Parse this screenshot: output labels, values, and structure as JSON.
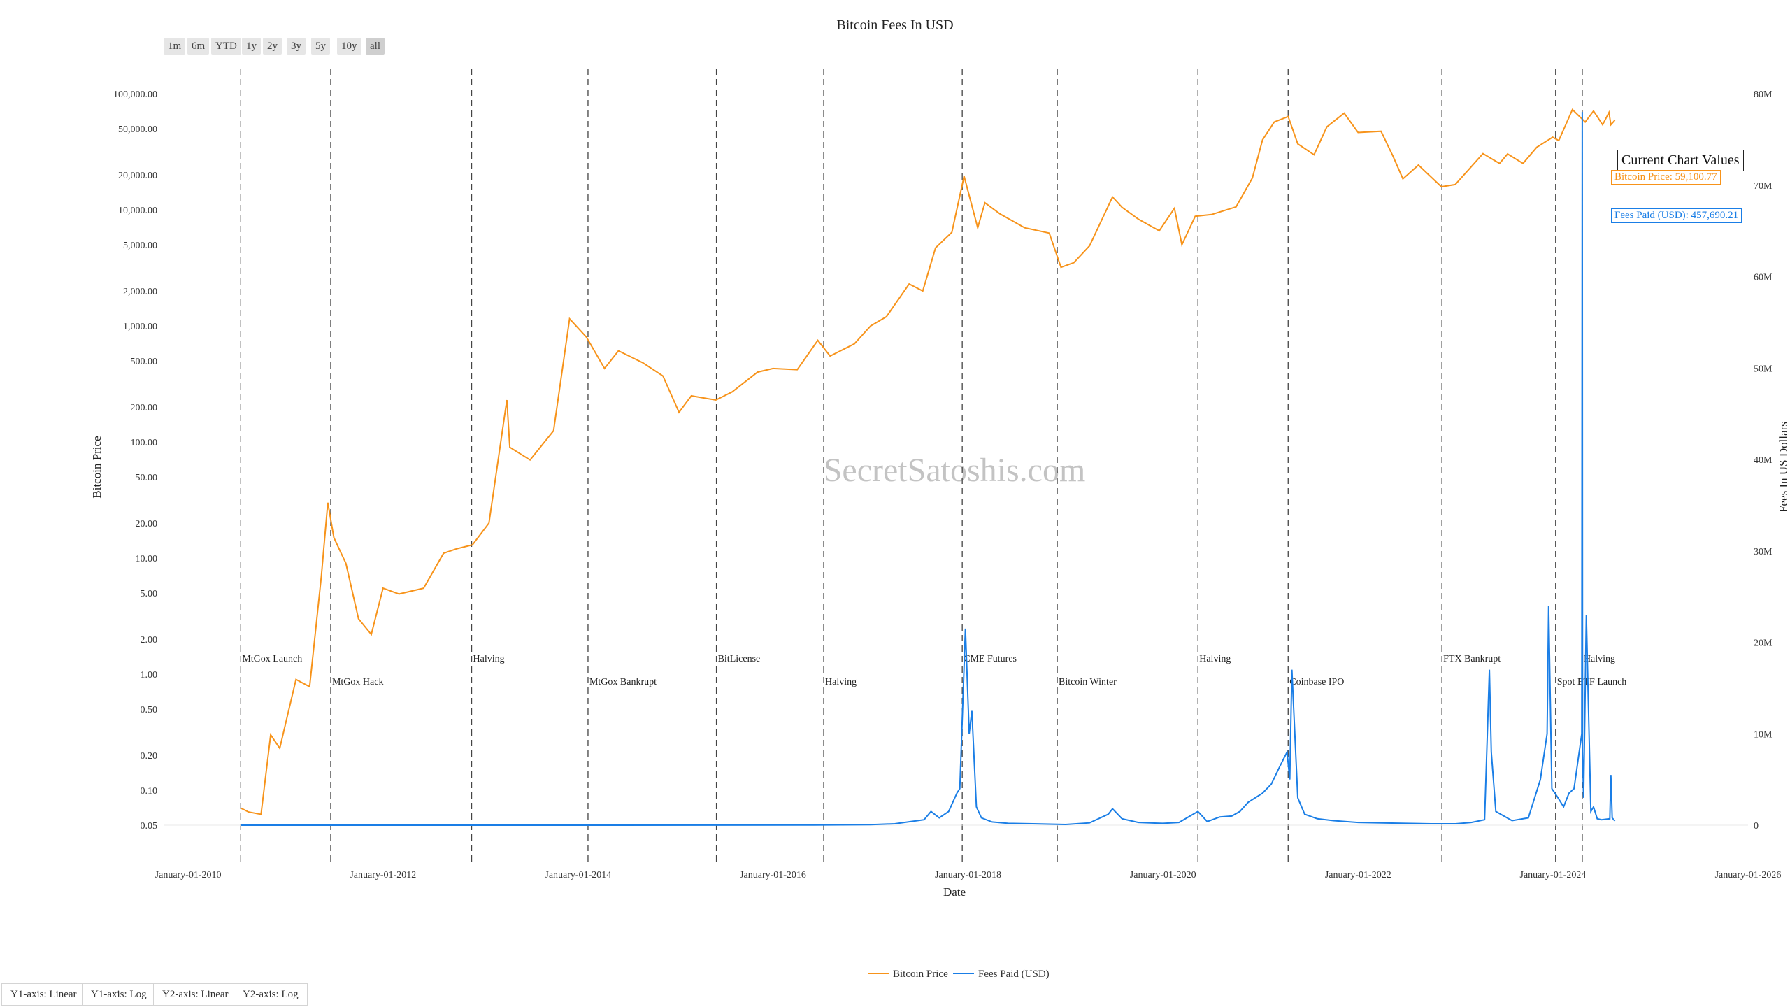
{
  "range_buttons": [
    "1m",
    "6m",
    "YTD",
    "1y",
    "2y",
    "3y",
    "5y",
    "10y",
    "all"
  ],
  "active_range": "all",
  "y_axis_buttons": [
    "Y1-axis: Linear",
    "Y1-axis: Log",
    "Y2-axis: Linear",
    "Y2-axis: Log"
  ],
  "watermark": "SecretSatoshis.com",
  "current_values": {
    "title": "Current Chart Values",
    "price_label": "Bitcoin Price: 59,100.77",
    "fees_label": "Fees Paid (USD): 457,690.21"
  },
  "colors": {
    "price": "#f7931a",
    "fees": "#1a7ee6"
  },
  "chart_data": {
    "type": "line",
    "title": "Bitcoin Fees In USD",
    "xlabel": "Date",
    "y1label": "Bitcoin Price",
    "y2label": "Fees In US Dollars",
    "x_range": [
      "2009-10-01",
      "2026-01-01"
    ],
    "x_ticks": [
      "January-01-2010",
      "January-01-2012",
      "January-01-2014",
      "January-01-2016",
      "January-01-2018",
      "January-01-2020",
      "January-01-2022",
      "January-01-2024",
      "January-01-2026"
    ],
    "y1_scale": "log",
    "y1_range": [
      0.05,
      100000
    ],
    "y1_ticks": [
      "100,000.00",
      "50,000.00",
      "20,000.00",
      "10,000.00",
      "5,000.00",
      "2,000.00",
      "1,000.00",
      "500.00",
      "200.00",
      "100.00",
      "50.00",
      "20.00",
      "10.00",
      "5.00",
      "2.00",
      "1.00",
      "0.50",
      "0.20",
      "0.10",
      "0.05"
    ],
    "y2_scale": "linear",
    "y2_range": [
      0,
      80000000
    ],
    "y2_ticks": [
      "0",
      "10M",
      "20M",
      "30M",
      "40M",
      "50M",
      "60M",
      "70M",
      "80M"
    ],
    "legend": "bottom-center",
    "grid": false,
    "events": [
      {
        "date": "2010-07-17",
        "label": "MtGox Launch"
      },
      {
        "date": "2011-06-19",
        "label": "MtGox Hack"
      },
      {
        "date": "2012-11-28",
        "label": "Halving"
      },
      {
        "date": "2014-02-07",
        "label": "MtGox Bankrupt"
      },
      {
        "date": "2015-06-03",
        "label": "BitLicense"
      },
      {
        "date": "2016-07-09",
        "label": "Halving"
      },
      {
        "date": "2017-12-10",
        "label": "CME Futures"
      },
      {
        "date": "2018-12-01",
        "label": "Bitcoin Winter"
      },
      {
        "date": "2020-05-11",
        "label": "Halving"
      },
      {
        "date": "2021-04-14",
        "label": "Coinbase IPO"
      },
      {
        "date": "2022-11-11",
        "label": "FTX Bankrupt"
      },
      {
        "date": "2024-01-11",
        "label": "Spot ETF Launch"
      },
      {
        "date": "2024-04-20",
        "label": "Halving"
      }
    ],
    "series": [
      {
        "name": "Bitcoin Price",
        "axis": "y1",
        "x": [
          "2010-07-18",
          "2010-08-15",
          "2010-10-01",
          "2010-11-06",
          "2010-12-10",
          "2011-02-09",
          "2011-04-01",
          "2011-05-15",
          "2011-06-08",
          "2011-07-01",
          "2011-08-15",
          "2011-10-01",
          "2011-11-18",
          "2012-01-01",
          "2012-03-01",
          "2012-06-01",
          "2012-08-15",
          "2012-10-01",
          "2012-12-01",
          "2013-02-01",
          "2013-04-09",
          "2013-04-20",
          "2013-07-05",
          "2013-10-01",
          "2013-11-30",
          "2014-02-01",
          "2014-04-10",
          "2014-06-01",
          "2014-09-01",
          "2014-11-15",
          "2015-01-14",
          "2015-03-01",
          "2015-06-01",
          "2015-08-01",
          "2015-11-04",
          "2016-01-01",
          "2016-04-01",
          "2016-06-17",
          "2016-08-02",
          "2016-11-01",
          "2017-01-01",
          "2017-03-01",
          "2017-05-25",
          "2017-07-15",
          "2017-09-01",
          "2017-11-01",
          "2017-12-17",
          "2018-02-06",
          "2018-03-05",
          "2018-05-01",
          "2018-08-01",
          "2018-11-01",
          "2018-12-15",
          "2019-02-01",
          "2019-04-01",
          "2019-06-26",
          "2019-08-01",
          "2019-10-01",
          "2019-12-18",
          "2020-02-13",
          "2020-03-12",
          "2020-05-01",
          "2020-07-01",
          "2020-10-01",
          "2020-12-01",
          "2021-01-08",
          "2021-02-21",
          "2021-04-14",
          "2021-05-20",
          "2021-07-20",
          "2021-09-06",
          "2021-11-10",
          "2022-01-01",
          "2022-03-28",
          "2022-05-12",
          "2022-06-18",
          "2022-08-15",
          "2022-11-09",
          "2022-12-31",
          "2023-03-01",
          "2023-04-14",
          "2023-06-15",
          "2023-07-15",
          "2023-09-11",
          "2023-11-01",
          "2023-12-31",
          "2024-01-23",
          "2024-03-14",
          "2024-05-01",
          "2024-06-01",
          "2024-07-05",
          "2024-07-29",
          "2024-08-05",
          "2024-08-20"
        ],
        "values": [
          0.07,
          0.065,
          0.062,
          0.3,
          0.23,
          0.9,
          0.78,
          7,
          30,
          15,
          9,
          3,
          2.2,
          5.5,
          4.9,
          5.5,
          11,
          12,
          13,
          20,
          230,
          90,
          70,
          125,
          1150,
          800,
          430,
          610,
          480,
          370,
          180,
          250,
          230,
          270,
          400,
          430,
          420,
          750,
          550,
          700,
          1000,
          1200,
          2300,
          2000,
          4700,
          6400,
          19500,
          7000,
          11500,
          9200,
          7000,
          6300,
          3200,
          3500,
          4900,
          12900,
          10500,
          8300,
          6600,
          10300,
          5000,
          8800,
          9100,
          10600,
          18800,
          40000,
          57000,
          63500,
          37000,
          29800,
          51800,
          68000,
          46300,
          47500,
          28900,
          18500,
          24300,
          15800,
          16500,
          23500,
          30500,
          25100,
          30300,
          25100,
          34500,
          42200,
          39500,
          73000,
          57000,
          71000,
          54000,
          69000,
          54000,
          59100
        ]
      },
      {
        "name": "Fees Paid (USD)",
        "axis": "y2",
        "x": [
          "2010-07-18",
          "2014-01-01",
          "2016-06-01",
          "2017-01-01",
          "2017-04-01",
          "2017-06-01",
          "2017-07-20",
          "2017-08-15",
          "2017-09-15",
          "2017-10-20",
          "2017-11-20",
          "2017-12-01",
          "2017-12-22",
          "2018-01-05",
          "2018-01-15",
          "2018-02-01",
          "2018-02-20",
          "2018-04-01",
          "2018-06-01",
          "2018-09-01",
          "2019-01-01",
          "2019-04-01",
          "2019-06-10",
          "2019-06-26",
          "2019-08-01",
          "2019-10-01",
          "2020-01-01",
          "2020-03-01",
          "2020-05-11",
          "2020-06-15",
          "2020-08-01",
          "2020-09-15",
          "2020-10-15",
          "2020-11-15",
          "2021-01-08",
          "2021-02-10",
          "2021-03-15",
          "2021-04-10",
          "2021-04-20",
          "2021-04-28",
          "2021-05-20",
          "2021-06-15",
          "2021-08-01",
          "2021-10-01",
          "2022-01-01",
          "2022-04-01",
          "2022-07-01",
          "2022-10-01",
          "2023-01-01",
          "2023-03-01",
          "2023-04-20",
          "2023-05-08",
          "2023-05-15",
          "2023-06-01",
          "2023-08-01",
          "2023-10-01",
          "2023-11-15",
          "2023-12-10",
          "2023-12-16",
          "2023-12-28",
          "2024-01-20",
          "2024-02-10",
          "2024-03-01",
          "2024-03-20",
          "2024-04-18",
          "2024-04-20",
          "2024-04-21",
          "2024-04-25",
          "2024-05-05",
          "2024-05-22",
          "2024-06-01",
          "2024-06-15",
          "2024-07-01",
          "2024-08-01",
          "2024-08-05",
          "2024-08-10",
          "2024-08-20"
        ],
        "values": [
          0,
          0,
          20000,
          60000,
          150000,
          400000,
          600000,
          1500000,
          800000,
          1500000,
          3500000,
          4000000,
          21500000,
          10000000,
          12500000,
          2000000,
          800000,
          350000,
          200000,
          150000,
          80000,
          250000,
          1200000,
          1800000,
          700000,
          300000,
          200000,
          300000,
          1500000,
          400000,
          900000,
          1000000,
          1500000,
          2500000,
          3500000,
          4500000,
          6500000,
          8000000,
          5000000,
          17000000,
          3000000,
          1200000,
          700000,
          500000,
          300000,
          250000,
          200000,
          150000,
          150000,
          300000,
          600000,
          17000000,
          8000000,
          1500000,
          500000,
          800000,
          5000000,
          10000000,
          24000000,
          4000000,
          3000000,
          2000000,
          3500000,
          4000000,
          10000000,
          78000000,
          8000000,
          3000000,
          23000000,
          1500000,
          2000000,
          700000,
          600000,
          700000,
          5500000,
          800000,
          460000
        ]
      }
    ]
  }
}
